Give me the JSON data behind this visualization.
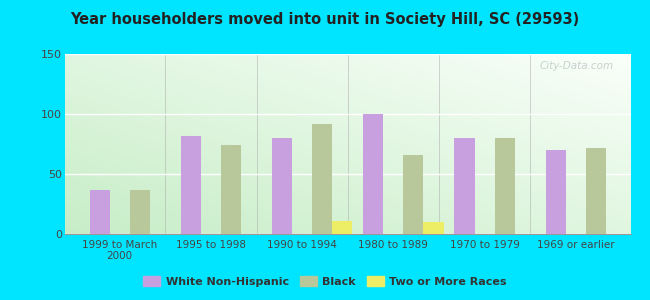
{
  "title": "Year householders moved into unit in Society Hill, SC (29593)",
  "categories": [
    "1999 to March\n2000",
    "1995 to 1998",
    "1990 to 1994",
    "1980 to 1989",
    "1970 to 1979",
    "1969 or earlier"
  ],
  "white_values": [
    37,
    82,
    80,
    100,
    80,
    70
  ],
  "black_values": [
    37,
    74,
    92,
    66,
    80,
    72
  ],
  "two_or_more_values": [
    0,
    0,
    11,
    10,
    0,
    0
  ],
  "white_color": "#c8a0e0",
  "black_color": "#b8c89a",
  "two_or_more_color": "#eeee66",
  "ylim": [
    0,
    150
  ],
  "yticks": [
    0,
    50,
    100,
    150
  ],
  "outer_bg": "#00e5ff",
  "watermark": "City-Data.com",
  "bar_width": 0.22,
  "legend_labels": [
    "White Non-Hispanic",
    "Black",
    "Two or More Races"
  ]
}
